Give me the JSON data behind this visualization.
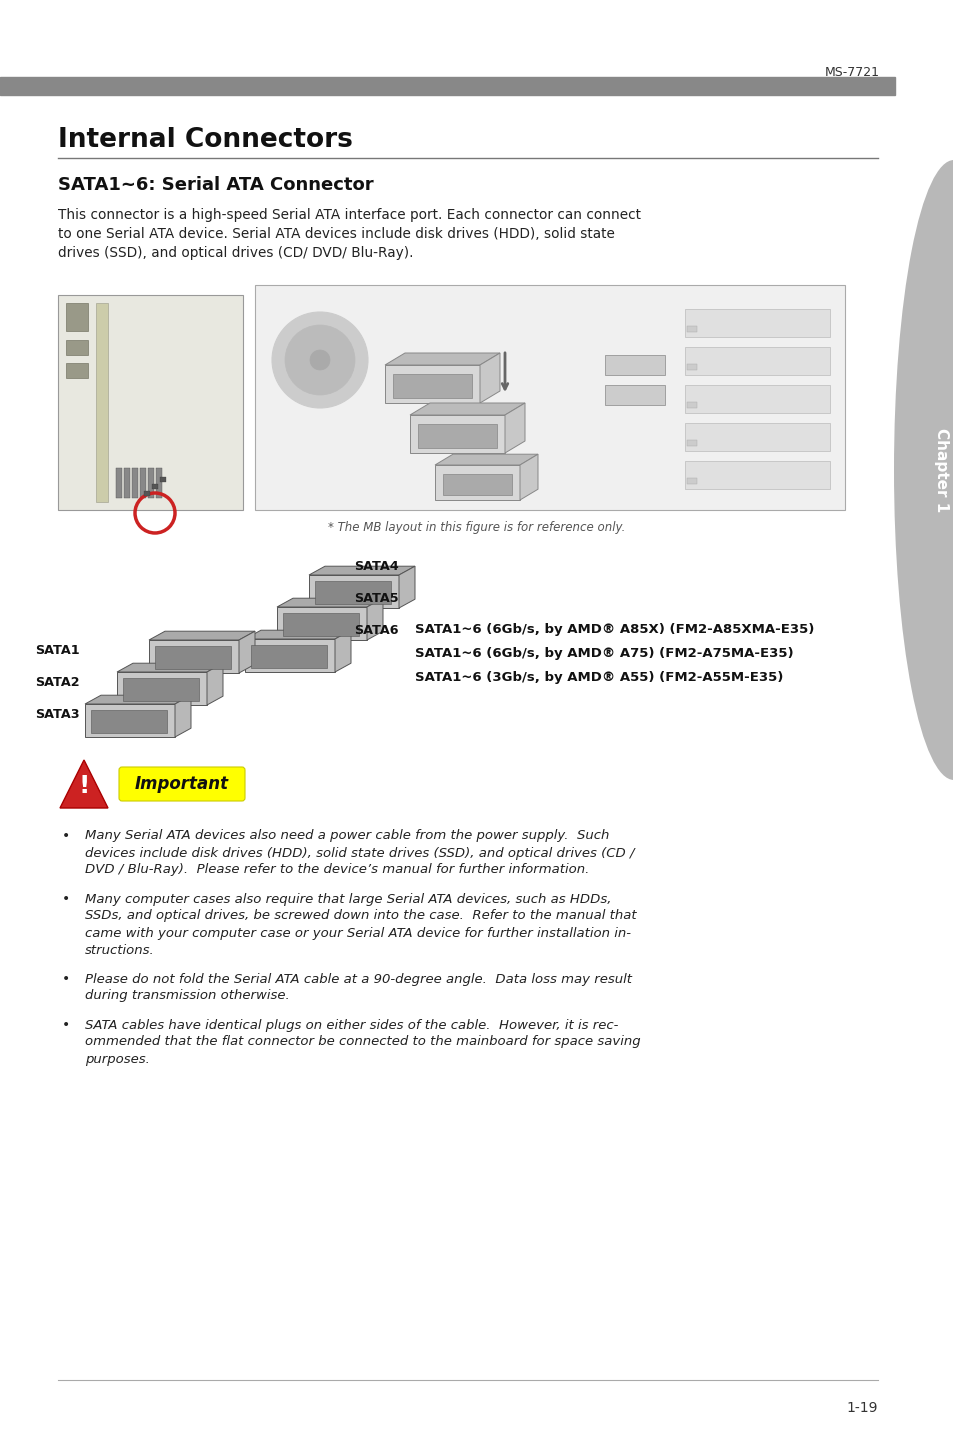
{
  "page_id": "MS-7721",
  "page_num": "1-19",
  "section_title": "Internal Connectors",
  "subsection_title": "SATA1~6: Serial ATA Connector",
  "intro_lines": [
    "This connector is a high-speed Serial ATA interface port. Each connector can connect",
    "to one Serial ATA device. Serial ATA devices include disk drives (HDD), solid state",
    "drives (SSD), and optical drives (CD/ DVD/ Blu-Ray)."
  ],
  "fig_note": "* The MB layout in this figure is for reference only.",
  "sata_specs": [
    "SATA1~6 (6Gb/s, by AMD® A85X) (FM2-A85XMA-E35)",
    "SATA1~6 (6Gb/s, by AMD® A75) (FM2-A75MA-E35)",
    "SATA1~6 (3Gb/s, by AMD® A55) (FM2-A55M-E35)"
  ],
  "important_label": "Important",
  "bullet_texts": [
    [
      "Many Serial ATA devices also need a power cable from the power supply.  Such",
      "devices include disk drives (HDD), solid state drives (SSD), and optical drives (CD /",
      "DVD / Blu-Ray).  Please refer to the device’s manual for further information."
    ],
    [
      "Many computer cases also require that large Serial ATA devices, such as HDDs,",
      "SSDs, and optical drives, be screwed down into the case.  Refer to the manual that",
      "came with your computer case or your Serial ATA device for further installation in-",
      "structions."
    ],
    [
      "Please do not fold the Serial ATA cable at a 90-degree angle.  Data loss may result",
      "during transmission otherwise."
    ],
    [
      "SATA cables have identical plugs on either sides of the cable.  However, it is rec-",
      "ommended that the flat connector be connected to the mainboard for space saving",
      "purposes."
    ]
  ],
  "header_bar_color": "#888888",
  "page_bg": "#ffffff",
  "text_color": "#222222",
  "title_color": "#111111",
  "chapter_tab_color": "#b8b8b8",
  "chapter_label": "Chapter 1",
  "warning_red": "#cc2222",
  "important_bg": "#ffff00",
  "line_dark": "#666666",
  "line_light": "#cccccc"
}
